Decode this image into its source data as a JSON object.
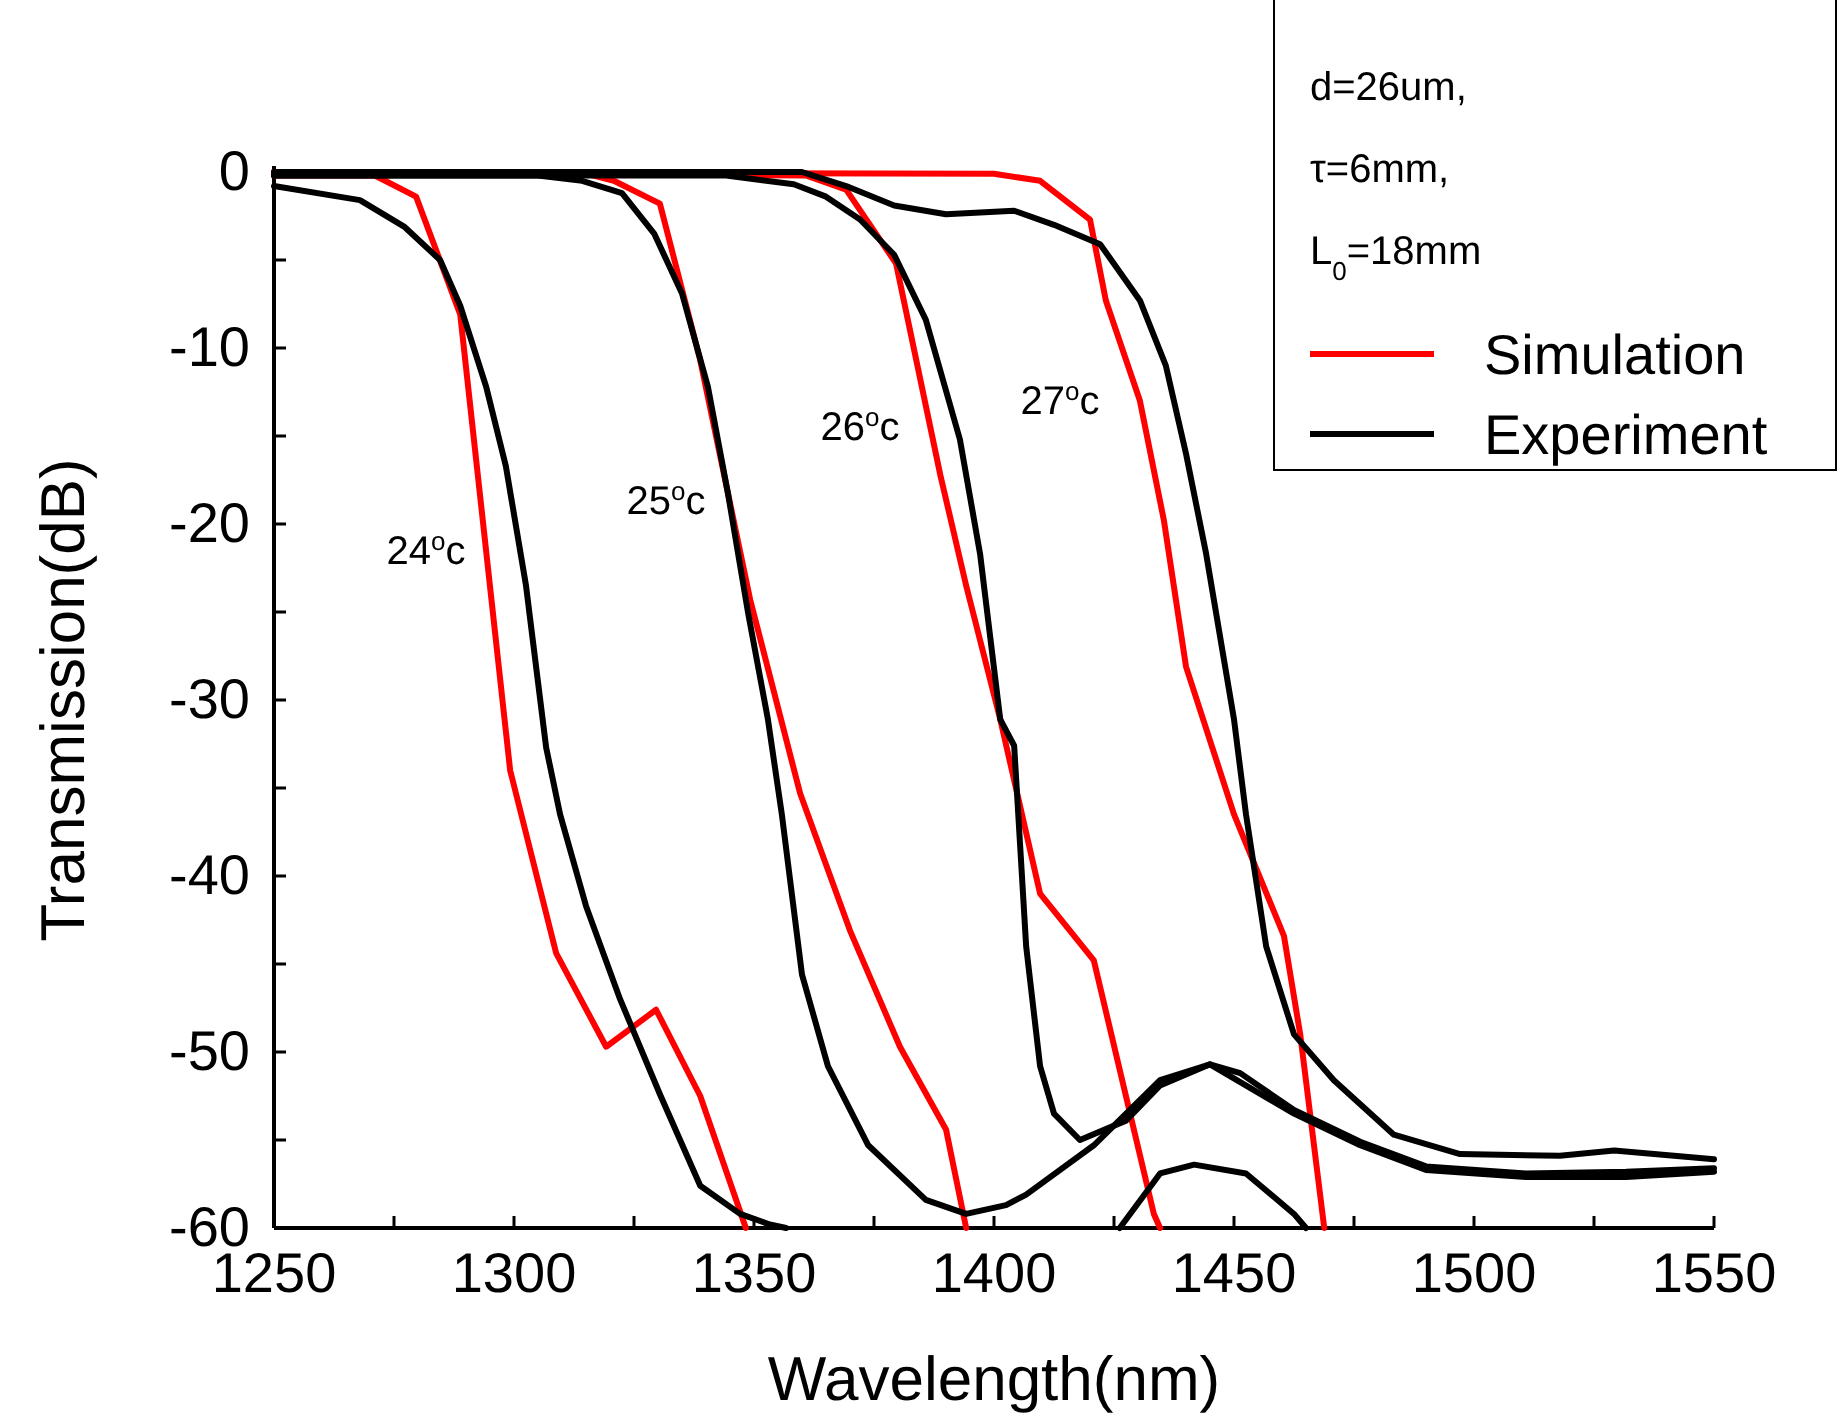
{
  "chart_data": {
    "type": "line",
    "xlabel": "Wavelength(nm)",
    "ylabel": "Transmission(dB)",
    "legend_title": "d=26um,\nτ=6mm,\nL$_{0}$=18mm",
    "legend": "top right",
    "line_style": "solid",
    "grid": false,
    "xlim": [
      1250,
      1550
    ],
    "ylim": [
      -60,
      0
    ],
    "xticks": [
      1250,
      {
        "value": 1275,
        "label": null
      },
      1300,
      {
        "value": 1325,
        "label": null
      },
      1350,
      {
        "value": 1375,
        "label": null
      },
      1400,
      {
        "value": 1425,
        "label": null
      },
      1450,
      {
        "value": 1475,
        "label": null
      },
      1500,
      {
        "value": 1525,
        "label": null
      },
      1550
    ],
    "yticks": [
      -60,
      {
        "value": -55,
        "label": null
      },
      -50,
      {
        "value": -45,
        "label": null
      },
      -40,
      {
        "value": -35,
        "label": null
      },
      -30,
      {
        "value": -25,
        "label": null
      },
      -20,
      {
        "value": -15,
        "label": null
      },
      -10,
      {
        "value": -5,
        "label": null
      },
      0
    ],
    "annotations": [
      "24$^{o}$c",
      "25$^{o}$c",
      "26$^{o}$c",
      "27$^{o}$c"
    ],
    "series": [
      {
        "name": "Simulation",
        "color": "#ff0000",
        "x": [
          1250,
          1271,
          1279.6,
          1288.8,
          1299.2,
          1308.8,
          1319.2,
          1329.6,
          1338.8,
          1348.3
        ],
        "values": [
          -0.2,
          -0.2,
          -1.4,
          -8.1,
          -34,
          -44.4,
          -49.7,
          -47.6,
          -52.5,
          -60
        ]
      },
      {
        "color": "#ff0000",
        "x": [
          1250,
          1313.8,
          1320.8,
          1330.4,
          1338.8,
          1349.2,
          1359.6,
          1370,
          1380.4,
          1390,
          1394.2
        ],
        "values": [
          0,
          0,
          -0.5,
          -1.8,
          -10.7,
          -24.3,
          -35.3,
          -43.1,
          -49.7,
          -54.4,
          -60
        ]
      },
      {
        "color": "#ff0000",
        "x": [
          1250,
          1360.8,
          1369.2,
          1379.6,
          1388.8,
          1394.2,
          1401.3,
          1409.6,
          1420.8,
          1433.3,
          1434.6
        ],
        "values": [
          0,
          -0.2,
          -1,
          -5.2,
          -17.2,
          -23.5,
          -31.1,
          -41,
          -44.8,
          -59.2,
          -60
        ]
      },
      {
        "color": "#ff0000",
        "x": [
          1250,
          1400,
          1409.6,
          1420,
          1423.3,
          1430.4,
          1435.4,
          1440,
          1450,
          1460.4,
          1463.8,
          1468.8
        ],
        "values": [
          0,
          -0.1,
          -0.5,
          -2.7,
          -7.3,
          -13,
          -19.8,
          -28.1,
          -36.5,
          -43.4,
          -49,
          -60
        ]
      },
      {
        "name": "Experiment",
        "color": "#000000",
        "x": [
          1250,
          1267.9,
          1277.1,
          1284.6,
          1288.8,
          1294.2,
          1298.3,
          1302.5,
          1306.7,
          1309.6,
          1315,
          1322.1,
          1330.4,
          1338.8,
          1347.1,
          1353.3,
          1356.7,
          1400,
          1426.2,
          1434.6,
          1441.7,
          1452.5,
          1462.5,
          1465
        ],
        "values": [
          -0.8,
          -1.6,
          -3.1,
          -5,
          -7.6,
          -12.2,
          -16.7,
          -23.5,
          -32.7,
          -36.5,
          -41.7,
          -47,
          -52.4,
          -57.6,
          -59.2,
          -59.8,
          -60,
          null,
          -60,
          -56.9,
          -56.4,
          -56.9,
          -59.2,
          -60
        ]
      },
      {
        "color": "#000000",
        "x": [
          1250,
          1305,
          1314.2,
          1322.5,
          1329.2,
          1335,
          1340.4,
          1344.6,
          1348.8,
          1352.9,
          1355.8,
          1360,
          1365.4,
          1373.8,
          1385.8,
          1394.2,
          1402.5,
          1406.7,
          1420.8,
          1434.6,
          1445,
          1451.3,
          1462.5,
          1476.3,
          1490,
          1510.8,
          1531.7,
          1550
        ],
        "values": [
          -0.2,
          -0.2,
          -0.5,
          -1.2,
          -3.5,
          -6.9,
          -12.2,
          -18.3,
          -25.1,
          -31.1,
          -36.5,
          -45.6,
          -50.8,
          -55.3,
          -58.4,
          -59.2,
          -58.7,
          -58.1,
          -55.3,
          -51.6,
          -50.7,
          -51.2,
          -53.3,
          -55.1,
          -56.5,
          -56.9,
          -56.8,
          -56.6
        ]
      },
      {
        "color": "#000000",
        "x": [
          1250,
          1344.2,
          1358.3,
          1365,
          1372.1,
          1379.2,
          1385.8,
          1392.9,
          1397.1,
          1401.3,
          1404.2,
          1406.7,
          1409.6,
          1412.5,
          1417.9,
          1427.5,
          1434.6,
          1445,
          1462.5,
          1476.3,
          1490,
          1510.8,
          1531.7,
          1550
        ],
        "values": [
          -0.2,
          -0.2,
          -0.7,
          -1.4,
          -2.7,
          -4.7,
          -8.4,
          -15.2,
          -21.7,
          -31.1,
          -32.6,
          -44,
          -50.8,
          -53.5,
          -55,
          -53.9,
          -51.9,
          -50.7,
          -53.5,
          -55.3,
          -56.7,
          -57.1,
          -57.1,
          -56.8
        ]
      },
      {
        "color": "#000000",
        "x": [
          1250,
          1360,
          1369.2,
          1379.2,
          1390,
          1404.2,
          1412.5,
          1422.1,
          1430.4,
          1435.8,
          1440,
          1444.2,
          1450,
          1452.5,
          1456.7,
          1462.5,
          1470.8,
          1483.3,
          1497.1,
          1517.9,
          1529.2,
          1550
        ],
        "values": [
          0,
          0,
          -0.8,
          -1.9,
          -2.4,
          -2.2,
          -3,
          -4.1,
          -7.3,
          -11,
          -16,
          -21.7,
          -31.1,
          -36.5,
          -44,
          -49,
          -51.6,
          -54.7,
          -55.8,
          -55.9,
          -55.6,
          -56.1
        ]
      }
    ]
  }
}
